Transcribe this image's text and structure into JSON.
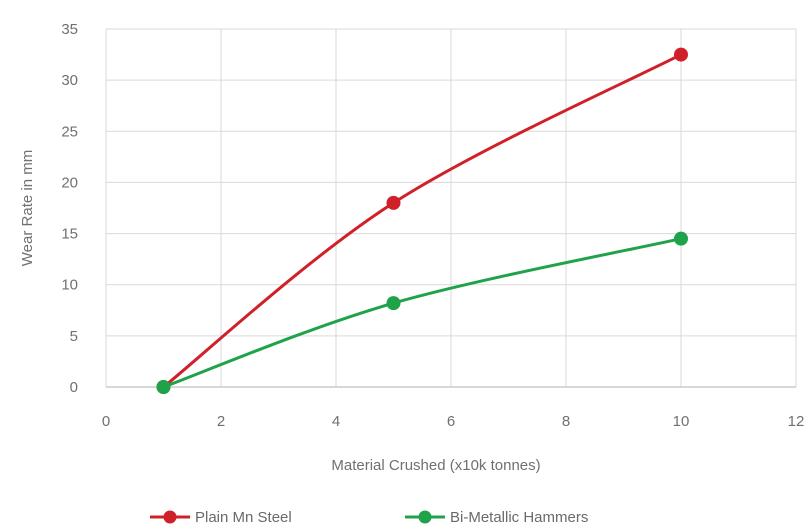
{
  "chart_data": {
    "type": "scatter",
    "title": "",
    "xlabel": "Material Crushed (x10k tonnes)",
    "ylabel": "Wear Rate in mm",
    "xlim": [
      0,
      12
    ],
    "ylim": [
      0,
      35
    ],
    "xticks": [
      0,
      2,
      4,
      6,
      8,
      10,
      12
    ],
    "yticks": [
      0,
      5,
      10,
      15,
      20,
      25,
      30,
      35
    ],
    "grid": true,
    "smooth_lines": true,
    "legend_position": "bottom",
    "series": [
      {
        "name": "Plain Mn Steel",
        "color": "#d0202a",
        "x": [
          1,
          5,
          10
        ],
        "y": [
          0,
          18,
          32.5
        ]
      },
      {
        "name": "Bi-Metallic Hammers",
        "color": "#1fa34a",
        "x": [
          1,
          5,
          10
        ],
        "y": [
          0,
          8.2,
          14.5
        ]
      }
    ]
  }
}
